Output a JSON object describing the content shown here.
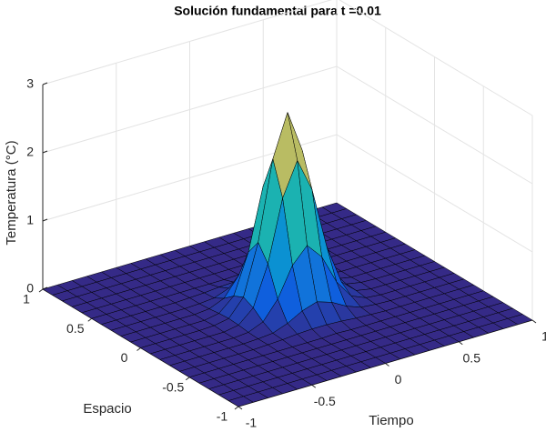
{
  "chart_data": {
    "type": "surface",
    "title": "Solución fundamental para t =0.01",
    "xlabel": "Tiempo",
    "ylabel": "Espacio",
    "zlabel": "Temperatura (°C)",
    "xlim": [
      -1,
      1
    ],
    "ylim": [
      -1,
      1
    ],
    "zlim": [
      0,
      3
    ],
    "xticks": [
      -1,
      -0.5,
      0,
      0.5,
      1
    ],
    "yticks": [
      -1,
      -0.5,
      0,
      0.5,
      1
    ],
    "zticks": [
      0,
      1,
      2,
      3
    ],
    "grid": true,
    "colormap": "parula",
    "edge_color": "#000000",
    "x": [
      -1,
      -0.9,
      -0.8,
      -0.7,
      -0.6,
      -0.5,
      -0.4,
      -0.3,
      -0.2,
      -0.1,
      0,
      0.1,
      0.2,
      0.3,
      0.4,
      0.5,
      0.6,
      0.7,
      0.8,
      0.9,
      1
    ],
    "y": [
      -1,
      -0.9,
      -0.8,
      -0.7,
      -0.6,
      -0.5,
      -0.4,
      -0.3,
      -0.2,
      -0.1,
      0,
      0.1,
      0.2,
      0.3,
      0.4,
      0.5,
      0.6,
      0.7,
      0.8,
      0.9,
      1
    ],
    "z": [
      [
        0,
        0,
        0,
        0,
        0,
        0,
        0,
        0,
        0,
        0,
        0,
        0,
        0,
        0,
        0,
        0,
        0,
        0,
        0,
        0,
        0
      ],
      [
        0,
        0,
        0,
        0,
        0,
        0,
        0,
        0,
        0,
        0,
        0,
        0,
        0,
        0,
        0,
        0,
        0,
        0,
        0,
        0,
        0
      ],
      [
        0,
        0,
        0,
        0,
        0,
        0,
        0,
        0,
        0,
        0,
        0,
        0,
        0,
        0,
        0,
        0,
        0,
        0,
        0,
        0,
        0
      ],
      [
        0,
        0,
        0,
        0,
        0,
        0,
        0,
        0,
        0,
        0,
        0,
        0,
        0,
        0,
        0,
        0,
        0,
        0,
        0,
        0,
        0
      ],
      [
        0,
        0,
        0,
        0,
        0,
        0,
        0,
        0,
        0,
        0,
        0,
        0,
        0,
        0,
        0,
        0,
        0,
        0,
        0,
        0,
        0
      ],
      [
        0,
        0,
        0,
        0,
        0,
        0,
        0,
        0,
        0,
        0,
        0.01,
        0,
        0,
        0,
        0,
        0,
        0,
        0,
        0,
        0,
        0
      ],
      [
        0,
        0,
        0,
        0,
        0,
        0,
        0.01,
        0.02,
        0.04,
        0.05,
        0.05,
        0.04,
        0.02,
        0.01,
        0,
        0,
        0,
        0,
        0,
        0,
        0
      ],
      [
        0,
        0,
        0,
        0,
        0,
        0,
        0.01,
        0.03,
        0.11,
        0.23,
        0.3,
        0.23,
        0.11,
        0.03,
        0.01,
        0,
        0,
        0,
        0,
        0,
        0
      ],
      [
        0,
        0,
        0,
        0,
        0,
        0,
        0.02,
        0.11,
        0.38,
        0.81,
        1.04,
        0.81,
        0.38,
        0.11,
        0.02,
        0,
        0,
        0,
        0,
        0,
        0
      ],
      [
        0,
        0,
        0,
        0,
        0,
        0,
        0.04,
        0.23,
        0.81,
        1.71,
        2.2,
        1.71,
        0.81,
        0.23,
        0.04,
        0,
        0,
        0,
        0,
        0,
        0
      ],
      [
        0,
        0,
        0,
        0,
        0,
        0.01,
        0.05,
        0.3,
        1.04,
        2.2,
        2.82,
        2.2,
        1.04,
        0.3,
        0.05,
        0.01,
        0,
        0,
        0,
        0,
        0
      ],
      [
        0,
        0,
        0,
        0,
        0,
        0,
        0.04,
        0.23,
        0.81,
        1.71,
        2.2,
        1.71,
        0.81,
        0.23,
        0.04,
        0,
        0,
        0,
        0,
        0,
        0
      ],
      [
        0,
        0,
        0,
        0,
        0,
        0,
        0.02,
        0.11,
        0.38,
        0.81,
        1.04,
        0.81,
        0.38,
        0.11,
        0.02,
        0,
        0,
        0,
        0,
        0,
        0
      ],
      [
        0,
        0,
        0,
        0,
        0,
        0,
        0.01,
        0.03,
        0.11,
        0.23,
        0.3,
        0.23,
        0.11,
        0.03,
        0.01,
        0,
        0,
        0,
        0,
        0,
        0
      ],
      [
        0,
        0,
        0,
        0,
        0,
        0,
        0.01,
        0.02,
        0.04,
        0.05,
        0.05,
        0.04,
        0.02,
        0.01,
        0,
        0,
        0,
        0,
        0,
        0,
        0
      ],
      [
        0,
        0,
        0,
        0,
        0,
        0,
        0,
        0,
        0,
        0,
        0.01,
        0,
        0,
        0,
        0,
        0,
        0,
        0,
        0,
        0,
        0
      ],
      [
        0,
        0,
        0,
        0,
        0,
        0,
        0,
        0,
        0,
        0,
        0,
        0,
        0,
        0,
        0,
        0,
        0,
        0,
        0,
        0,
        0
      ],
      [
        0,
        0,
        0,
        0,
        0,
        0,
        0,
        0,
        0,
        0,
        0,
        0,
        0,
        0,
        0,
        0,
        0,
        0,
        0,
        0,
        0
      ],
      [
        0,
        0,
        0,
        0,
        0,
        0,
        0,
        0,
        0,
        0,
        0,
        0,
        0,
        0,
        0,
        0,
        0,
        0,
        0,
        0,
        0
      ],
      [
        0,
        0,
        0,
        0,
        0,
        0,
        0,
        0,
        0,
        0,
        0,
        0,
        0,
        0,
        0,
        0,
        0,
        0,
        0,
        0,
        0
      ],
      [
        0,
        0,
        0,
        0,
        0,
        0,
        0,
        0,
        0,
        0,
        0,
        0,
        0,
        0,
        0,
        0,
        0,
        0,
        0,
        0,
        0
      ]
    ]
  }
}
